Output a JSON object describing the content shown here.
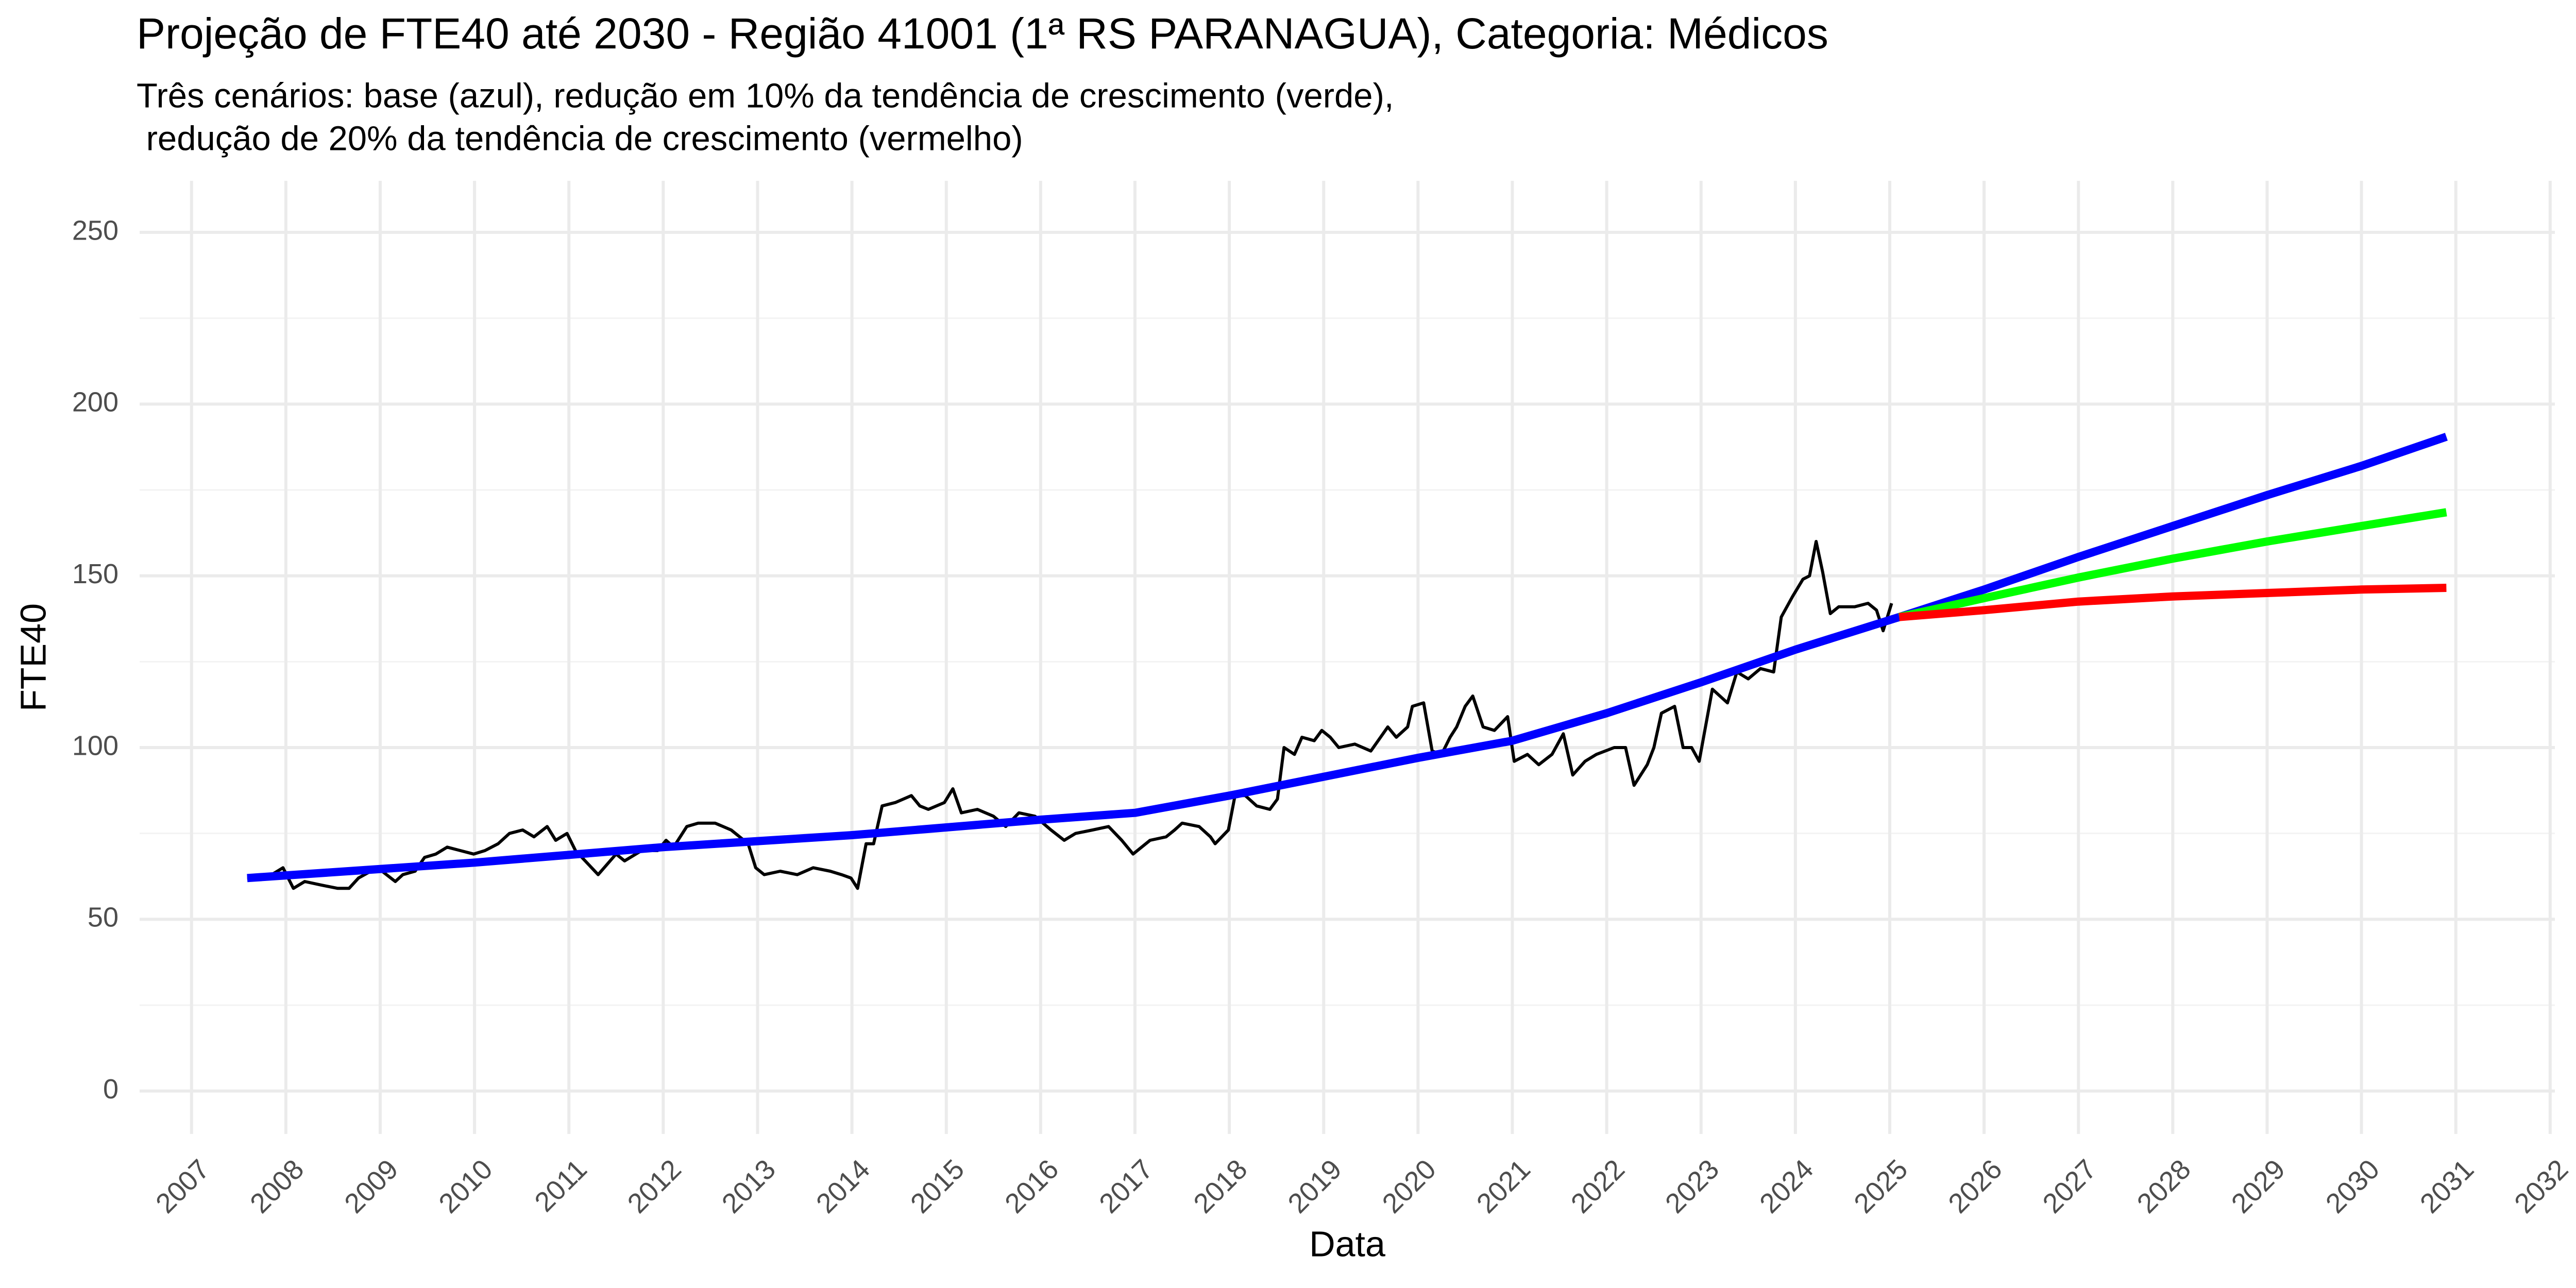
{
  "chart_data": {
    "type": "line",
    "title": "Projeção de FTE40 até 2030 - Região 41001 (1ª RS PARANAGUA), Categoria: Médicos",
    "subtitle": [
      "Três cenários: base (azul), redução em 10% da tendência de crescimento (verde),",
      " redução de 20% da tendência de crescimento (vermelho)"
    ],
    "xlabel": "Data",
    "ylabel": "FTE40",
    "xlim": [
      2006.45,
      2032.05
    ],
    "xticks": [
      2007,
      2008,
      2009,
      2010,
      2011,
      2012,
      2013,
      2014,
      2015,
      2016,
      2017,
      2018,
      2019,
      2020,
      2021,
      2022,
      2023,
      2024,
      2025,
      2026,
      2027,
      2028,
      2029,
      2030,
      2031,
      2032
    ],
    "ylim": [
      -12.5,
      265
    ],
    "yticks": [
      0,
      50,
      100,
      150,
      200,
      250
    ],
    "yminorticks": [
      25,
      75,
      125,
      175,
      225
    ],
    "grid": true,
    "series": [
      {
        "color": "#000000",
        "width": 6,
        "x": [
          2007.59,
          2007.73,
          2007.85,
          2007.97,
          2008.08,
          2008.2,
          2008.37,
          2008.55,
          2008.67,
          2008.77,
          2008.9,
          2009.02,
          2009.16,
          2009.24,
          2009.37,
          2009.47,
          2009.59,
          2009.71,
          2009.85,
          2009.99,
          2010.11,
          2010.25,
          2010.37,
          2010.51,
          2010.63,
          2010.77,
          2010.86,
          2010.98,
          2011.07,
          2011.31,
          2011.5,
          2011.59,
          2011.77,
          2011.94,
          2012.03,
          2012.11,
          2012.25,
          2012.37,
          2012.55,
          2012.72,
          2012.9,
          2012.98,
          2013.07,
          2013.24,
          2013.42,
          2013.59,
          2013.77,
          2013.89,
          2013.99,
          2014.06,
          2014.15,
          2014.23,
          2014.32,
          2014.46,
          2014.63,
          2014.72,
          2014.81,
          2014.98,
          2015.07,
          2015.16,
          2015.33,
          2015.5,
          2015.63,
          2015.77,
          2015.94,
          2016.11,
          2016.25,
          2016.37,
          2016.55,
          2016.72,
          2016.86,
          2016.98,
          2017.16,
          2017.33,
          2017.42,
          2017.5,
          2017.68,
          2017.8,
          2017.85,
          2017.99,
          2018.06,
          2018.17,
          2018.29,
          2018.43,
          2018.51,
          2018.58,
          2018.69,
          2018.77,
          2018.9,
          2018.98,
          2019.07,
          2019.16,
          2019.33,
          2019.5,
          2019.68,
          2019.77,
          2019.89,
          2019.94,
          2020.06,
          2020.15,
          2020.25,
          2020.34,
          2020.41,
          2020.5,
          2020.58,
          2020.69,
          2020.81,
          2020.95,
          2021.02,
          2021.16,
          2021.28,
          2021.42,
          2021.54,
          2021.64,
          2021.77,
          2021.89,
          2022.08,
          2022.2,
          2022.29,
          2022.43,
          2022.5,
          2022.58,
          2022.72,
          2022.81,
          2022.9,
          2022.98,
          2023.12,
          2023.28,
          2023.38,
          2023.5,
          2023.63,
          2023.77,
          2023.85,
          2023.97,
          2024.08,
          2024.15,
          2024.22,
          2024.29,
          2024.37,
          2024.46,
          2024.63,
          2024.77,
          2024.86,
          2024.93,
          2025.02
        ],
        "values": [
          62,
          62,
          63,
          65,
          59,
          61,
          60,
          59,
          59,
          62,
          64,
          64,
          61,
          63,
          64,
          68,
          69,
          71,
          70,
          69,
          70,
          72,
          75,
          76,
          74,
          77,
          73,
          75,
          70,
          63,
          69,
          67,
          70,
          70,
          73,
          71,
          77,
          78,
          78,
          76,
          72,
          65,
          63,
          64,
          63,
          65,
          64,
          63,
          62,
          59,
          72,
          72,
          83,
          84,
          86,
          83,
          82,
          84,
          88,
          81,
          82,
          80,
          77,
          81,
          80,
          76,
          73,
          75,
          76,
          77,
          73,
          69,
          73,
          74,
          76,
          78,
          77,
          74,
          72,
          76,
          86,
          86,
          83,
          82,
          85,
          100,
          98,
          103,
          102,
          105,
          103,
          100,
          101,
          99,
          106,
          103,
          106,
          112,
          113,
          99,
          98,
          103,
          106,
          112,
          115,
          106,
          105,
          109,
          96,
          98,
          95,
          98,
          104,
          92,
          96,
          98,
          100,
          100,
          89,
          95,
          100,
          110,
          112,
          100,
          100,
          96,
          117,
          113,
          122,
          120,
          123,
          122,
          138,
          144,
          149,
          150,
          160,
          151,
          139,
          141,
          141,
          142,
          140,
          134,
          142
        ]
      },
      {
        "color": "#0000ff",
        "width": 16,
        "x": [
          2007.59,
          2010,
          2012,
          2014,
          2016,
          2017,
          2018,
          2019,
          2020,
          2021,
          2021.5,
          2022,
          2023,
          2024,
          2025.1,
          2026,
          2027,
          2028,
          2029,
          2030,
          2030.9
        ],
        "values": [
          62,
          66.5,
          71,
          74.5,
          79,
          81,
          86,
          91.5,
          97,
          102,
          106,
          110,
          119,
          128.5,
          138,
          146,
          155.5,
          164.5,
          173.5,
          182,
          190.5
        ]
      },
      {
        "color": "#00ff00",
        "width": 16,
        "x": [
          2025.1,
          2026,
          2027,
          2028,
          2029,
          2030,
          2030.9
        ],
        "values": [
          138,
          143.5,
          149.5,
          155,
          160,
          164.5,
          168.5
        ]
      },
      {
        "color": "#ff0000",
        "width": 16,
        "x": [
          2025.1,
          2026,
          2027,
          2028,
          2029,
          2030,
          2030.9
        ],
        "values": [
          138,
          140,
          142.5,
          144,
          145,
          146,
          146.5
        ]
      }
    ]
  }
}
